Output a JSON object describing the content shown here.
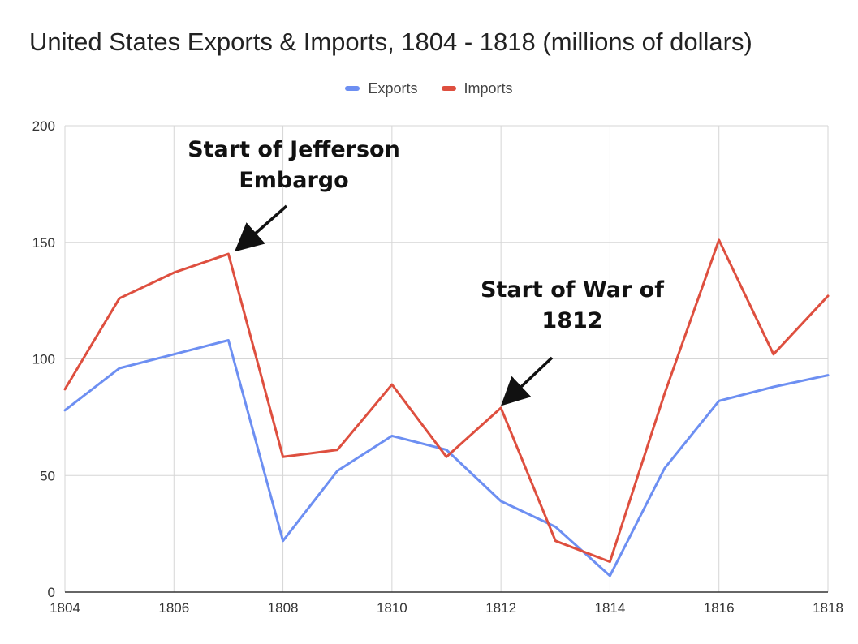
{
  "chart_data": {
    "type": "line",
    "title": "United States Exports & Imports, 1804 - 1818 (millions of dollars)",
    "xlabel": "",
    "ylabel": "",
    "x": [
      1804,
      1805,
      1806,
      1807,
      1808,
      1809,
      1810,
      1811,
      1812,
      1813,
      1814,
      1815,
      1816,
      1817,
      1818
    ],
    "series": [
      {
        "name": "Exports",
        "color": "#6d8ff2",
        "values": [
          78,
          96,
          102,
          108,
          22,
          52,
          67,
          61,
          39,
          28,
          7,
          53,
          82,
          88,
          93
        ]
      },
      {
        "name": "Imports",
        "color": "#de4f3f",
        "values": [
          87,
          126,
          137,
          145,
          58,
          61,
          89,
          58,
          79,
          22,
          13,
          85,
          151,
          102,
          127
        ]
      }
    ],
    "xlim": [
      1804,
      1818
    ],
    "ylim": [
      0,
      200
    ],
    "y_ticks": [
      0,
      50,
      100,
      150,
      200
    ],
    "x_ticks": [
      1804,
      1806,
      1808,
      1810,
      1812,
      1814,
      1816,
      1818
    ],
    "grid": true,
    "legend_position": "top-center",
    "annotations": [
      {
        "id": "jefferson",
        "lines": [
          "Start of Jefferson",
          "Embargo"
        ],
        "x": 1807,
        "y": 145
      },
      {
        "id": "war1812",
        "lines": [
          "Start of War of",
          "1812"
        ],
        "x": 1812,
        "y": 79
      }
    ]
  }
}
